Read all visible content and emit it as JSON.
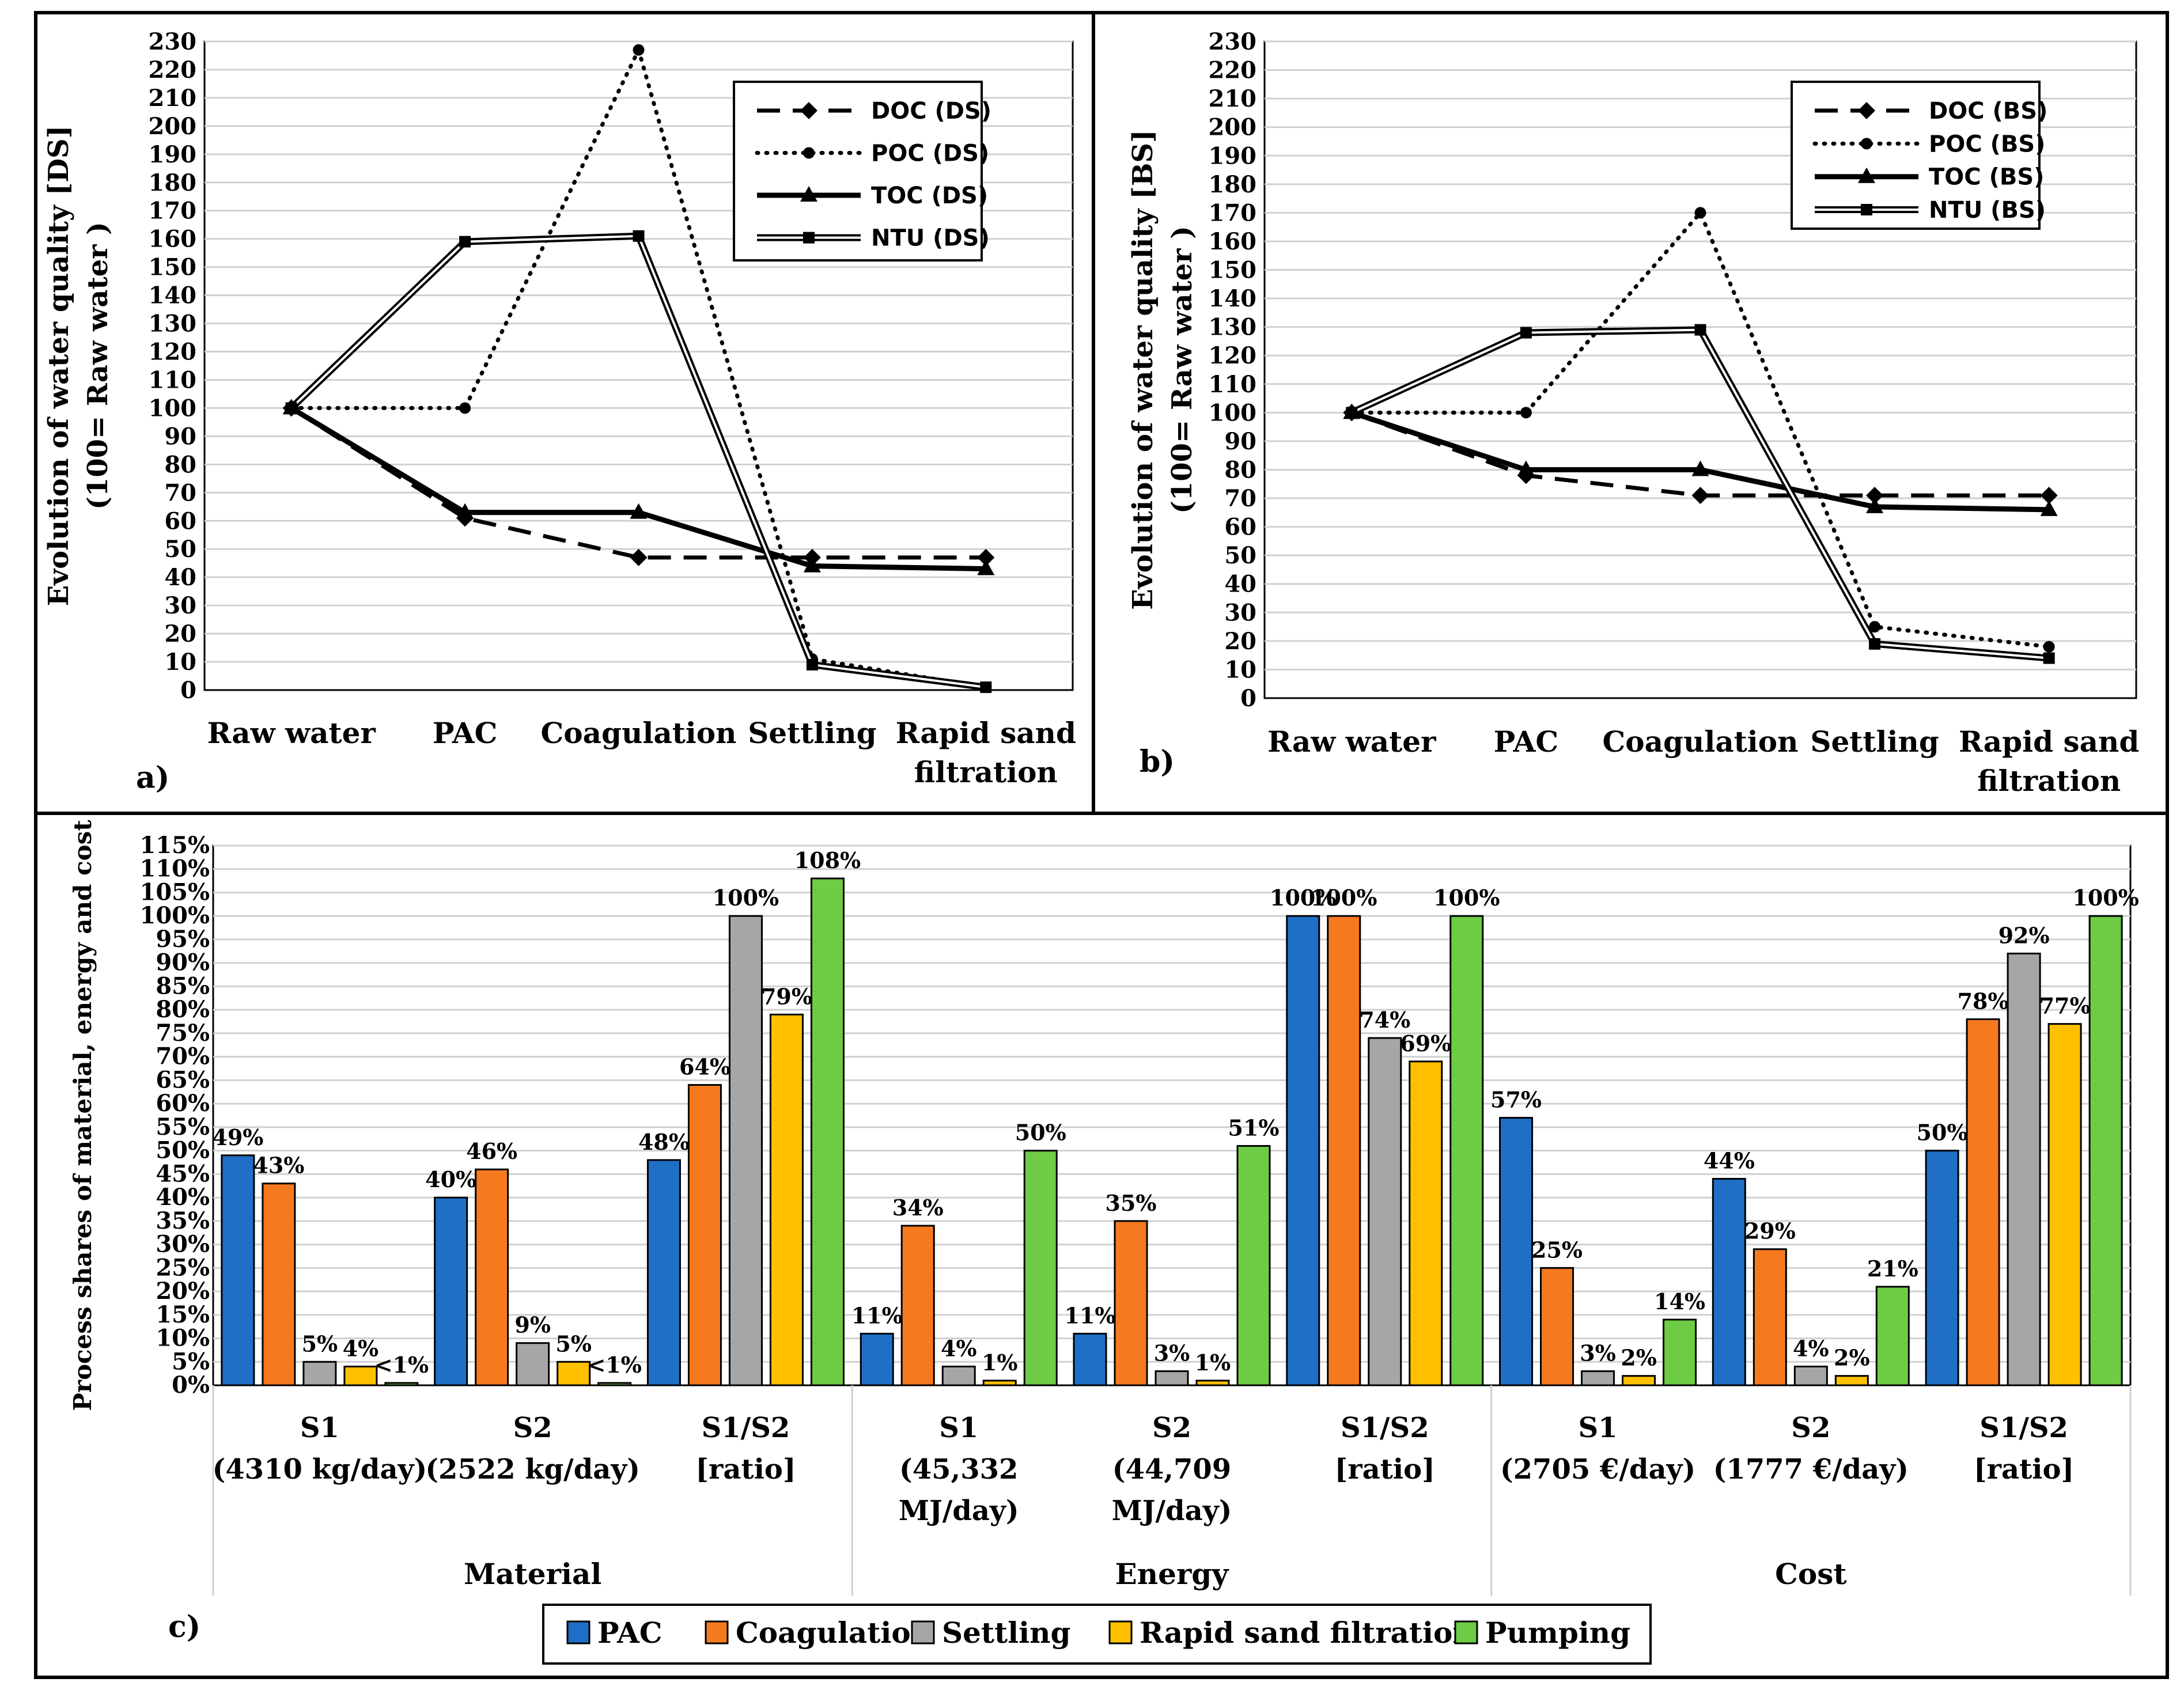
{
  "colors": {
    "PAC": "#1f6fc6",
    "Coagulation": "#f5791f",
    "Settling": "#a6a6a6",
    "Rapid sand filtration": "#ffc000",
    "Pumping": "#6dcc44",
    "grid": "#d0d0d0",
    "axis": "#000000"
  },
  "chart_data": [
    {
      "id": "a",
      "panel_label": "a)",
      "type": "line",
      "ylabel_line1": "Evolution of water quality [DS]",
      "ylabel_line2": "(100= Raw water )",
      "categories": [
        "Raw water",
        "PAC",
        "Coagulation",
        "Settling",
        "Rapid sand filtration"
      ],
      "category_lines": [
        [
          "Raw water"
        ],
        [
          "PAC"
        ],
        [
          "Coagulation"
        ],
        [
          "Settling"
        ],
        [
          "Rapid sand",
          "filtration"
        ]
      ],
      "ylim": [
        0,
        230
      ],
      "ytick_step": 10,
      "grid": true,
      "legend_position": "top-right",
      "series": [
        {
          "name": "DOC (DS)",
          "style": "dashed",
          "marker": "diamond",
          "values": [
            100,
            61,
            47,
            47,
            47
          ]
        },
        {
          "name": "POC (DS)",
          "style": "dotted",
          "marker": "circle",
          "values": [
            100,
            100,
            227,
            11,
            1
          ]
        },
        {
          "name": "TOC (DS)",
          "style": "solid",
          "marker": "triangle",
          "values": [
            100,
            63,
            63,
            44,
            43
          ]
        },
        {
          "name": "NTU (DS)",
          "style": "double",
          "marker": "square",
          "values": [
            100,
            159,
            161,
            9,
            1
          ]
        }
      ]
    },
    {
      "id": "b",
      "panel_label": "b)",
      "type": "line",
      "ylabel_line1": "Evolution of water quality [BS]",
      "ylabel_line2": "(100= Raw water )",
      "categories": [
        "Raw water",
        "PAC",
        "Coagulation",
        "Settling",
        "Rapid sand filtration"
      ],
      "category_lines": [
        [
          "Raw water"
        ],
        [
          "PAC"
        ],
        [
          "Coagulation"
        ],
        [
          "Settling"
        ],
        [
          "Rapid sand",
          "filtration"
        ]
      ],
      "ylim": [
        0,
        230
      ],
      "ytick_step": 10,
      "grid": true,
      "legend_position": "top-right",
      "series": [
        {
          "name": "DOC (BS)",
          "style": "dashed",
          "marker": "diamond",
          "values": [
            100,
            78,
            71,
            71,
            71
          ]
        },
        {
          "name": "POC (BS)",
          "style": "dotted",
          "marker": "circle",
          "values": [
            100,
            100,
            170,
            25,
            18
          ]
        },
        {
          "name": "TOC (BS)",
          "style": "solid",
          "marker": "triangle",
          "values": [
            100,
            80,
            80,
            67,
            66
          ]
        },
        {
          "name": "NTU (BS)",
          "style": "double",
          "marker": "square",
          "values": [
            100,
            128,
            129,
            19,
            14
          ]
        }
      ]
    },
    {
      "id": "c",
      "panel_label": "c)",
      "type": "bar",
      "ylabel": "Process shares of material, energy and cost",
      "ylim": [
        0,
        115
      ],
      "ytick_step": 5,
      "ytick_suffix": "%",
      "grid": true,
      "legend_position": "bottom",
      "series_names": [
        "PAC",
        "Coagulation",
        "Settling",
        "Rapid sand filtration",
        "Pumping"
      ],
      "groups": [
        {
          "category": "Material",
          "sub": [
            {
              "label_lines": [
                "S1",
                "(4310 kg/day)"
              ],
              "values": [
                49,
                43,
                5,
                4,
                0.5
              ],
              "labels": [
                "49%",
                "43%",
                "5%",
                "4%",
                "<1%"
              ]
            },
            {
              "label_lines": [
                "S2",
                "(2522 kg/day)"
              ],
              "values": [
                40,
                46,
                9,
                5,
                0.5
              ],
              "labels": [
                "40%",
                "46%",
                "9%",
                "5%",
                "<1%"
              ]
            },
            {
              "label_lines": [
                "S1/S2",
                "[ratio]"
              ],
              "values": [
                48,
                64,
                100,
                79,
                108
              ],
              "labels": [
                "48%",
                "64%",
                "100%",
                "79%",
                "108%"
              ]
            }
          ]
        },
        {
          "category": "Energy",
          "sub": [
            {
              "label_lines": [
                "S1",
                "(45,332",
                "MJ/day)"
              ],
              "values": [
                11,
                34,
                4,
                1,
                50
              ],
              "labels": [
                "11%",
                "34%",
                "4%",
                "1%",
                "50%"
              ]
            },
            {
              "label_lines": [
                "S2",
                "(44,709",
                "MJ/day)"
              ],
              "values": [
                11,
                35,
                3,
                1,
                51
              ],
              "labels": [
                "11%",
                "35%",
                "3%",
                "1%",
                "51%"
              ]
            },
            {
              "label_lines": [
                "S1/S2",
                "[ratio]"
              ],
              "values": [
                100,
                100,
                74,
                69,
                100
              ],
              "labels": [
                "100%",
                "100%",
                "74%",
                "69%",
                "100%"
              ]
            }
          ]
        },
        {
          "category": "Cost",
          "sub": [
            {
              "label_lines": [
                "S1",
                "(2705 €/day)"
              ],
              "values": [
                57,
                25,
                3,
                2,
                14
              ],
              "labels": [
                "57%",
                "25%",
                "3%",
                "2%",
                "14%"
              ]
            },
            {
              "label_lines": [
                "S2",
                "(1777 €/day)"
              ],
              "values": [
                44,
                29,
                4,
                2,
                21
              ],
              "labels": [
                "44%",
                "29%",
                "4%",
                "2%",
                "21%"
              ]
            },
            {
              "label_lines": [
                "S1/S2",
                "[ratio]"
              ],
              "values": [
                50,
                78,
                92,
                77,
                100
              ],
              "labels": [
                "50%",
                "78%",
                "92%",
                "77%",
                "100%"
              ]
            }
          ]
        }
      ]
    }
  ]
}
